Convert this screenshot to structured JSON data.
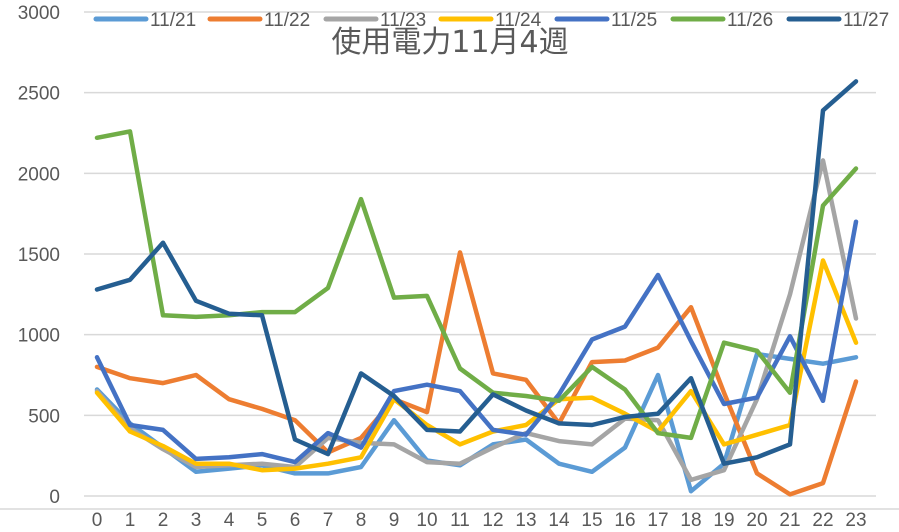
{
  "chart_data": {
    "type": "line",
    "title": "使用電力11月4週",
    "xlabel": "",
    "ylabel": "",
    "x": [
      0,
      1,
      2,
      3,
      4,
      5,
      6,
      7,
      8,
      9,
      10,
      11,
      12,
      13,
      14,
      15,
      16,
      17,
      18,
      19,
      20,
      21,
      22,
      23
    ],
    "x_tick_labels": [
      "0",
      "1",
      "2",
      "3",
      "4",
      "5",
      "6",
      "7",
      "8",
      "9",
      "10",
      "11",
      "12",
      "13",
      "14",
      "15",
      "16",
      "17",
      "18",
      "19",
      "20",
      "21",
      "22",
      "23"
    ],
    "ylim": [
      0,
      3000
    ],
    "y_ticks": [
      0,
      500,
      1000,
      1500,
      2000,
      2500,
      3000
    ],
    "y_tick_labels": [
      "0",
      "500",
      "1000",
      "1500",
      "2000",
      "2500",
      "3000"
    ],
    "grid": true,
    "legend_position": "top",
    "series": [
      {
        "name": "11/21",
        "color": "#5B9BD5",
        "values": [
          660,
          450,
          300,
          150,
          170,
          190,
          140,
          140,
          180,
          470,
          220,
          190,
          320,
          350,
          200,
          150,
          300,
          750,
          30,
          200,
          880,
          850,
          820,
          860
        ]
      },
      {
        "name": "11/22",
        "color": "#ED7D31",
        "values": [
          800,
          730,
          700,
          750,
          600,
          540,
          470,
          270,
          360,
          600,
          520,
          1510,
          760,
          720,
          450,
          830,
          840,
          920,
          1170,
          640,
          140,
          10,
          80,
          710
        ]
      },
      {
        "name": "11/23",
        "color": "#A5A5A5",
        "values": [
          650,
          420,
          290,
          180,
          190,
          200,
          180,
          360,
          330,
          320,
          210,
          200,
          300,
          390,
          340,
          320,
          480,
          470,
          100,
          160,
          600,
          1250,
          2080,
          1100
        ]
      },
      {
        "name": "11/24",
        "color": "#FFC000",
        "values": [
          640,
          400,
          310,
          200,
          200,
          160,
          170,
          200,
          240,
          600,
          440,
          320,
          400,
          440,
          600,
          610,
          510,
          400,
          650,
          320,
          380,
          440,
          1460,
          950
        ]
      },
      {
        "name": "11/25",
        "color": "#4472C4",
        "values": [
          860,
          440,
          410,
          230,
          240,
          260,
          210,
          390,
          300,
          650,
          690,
          650,
          410,
          380,
          630,
          970,
          1050,
          1370,
          960,
          570,
          610,
          990,
          590,
          1700
        ]
      },
      {
        "name": "11/26",
        "color": "#70AD47",
        "values": [
          2220,
          2260,
          1120,
          1110,
          1120,
          1140,
          1140,
          1290,
          1840,
          1230,
          1240,
          790,
          640,
          620,
          590,
          800,
          660,
          390,
          360,
          950,
          900,
          640,
          1800,
          2030
        ]
      },
      {
        "name": "11/27",
        "color": "#255E91",
        "values": [
          1280,
          1340,
          1570,
          1210,
          1130,
          1120,
          350,
          260,
          760,
          620,
          410,
          400,
          630,
          530,
          450,
          440,
          490,
          510,
          730,
          200,
          240,
          320,
          2390,
          2570
        ]
      }
    ]
  },
  "colors": {
    "gridline": "#D9D9D9",
    "axis": "#D9D9D9",
    "text": "#595959"
  }
}
